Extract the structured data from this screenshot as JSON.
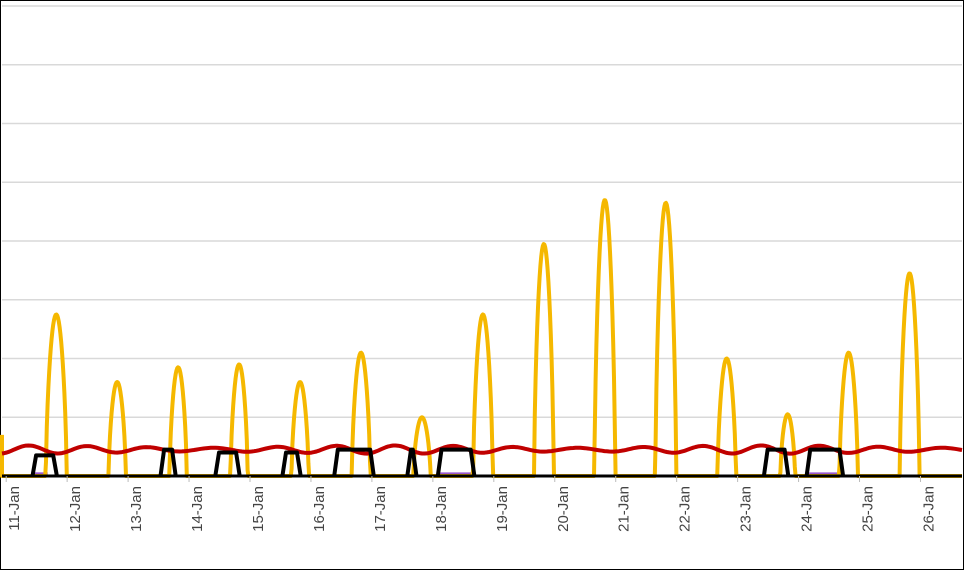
{
  "chart_data": {
    "type": "line",
    "title": "",
    "xlabel": "",
    "ylabel": "",
    "ylim": [
      0,
      8
    ],
    "grid": true,
    "categories": [
      "11-Jan",
      "12-Jan",
      "13-Jan",
      "14-Jan",
      "15-Jan",
      "16-Jan",
      "17-Jan",
      "18-Jan",
      "19-Jan",
      "20-Jan",
      "21-Jan",
      "22-Jan",
      "23-Jan",
      "24-Jan",
      "25-Jan",
      "26-Jan"
    ],
    "series": [
      {
        "color": "#f5b800",
        "peaks": [
          {
            "day": 0.69,
            "peak": 2.75,
            "width": 0.34
          },
          {
            "day": 1.69,
            "peak": 1.6,
            "width": 0.28
          },
          {
            "day": 2.69,
            "peak": 1.85,
            "width": 0.28
          },
          {
            "day": 3.69,
            "peak": 1.9,
            "width": 0.28
          },
          {
            "day": 4.69,
            "peak": 1.6,
            "width": 0.28
          },
          {
            "day": 5.69,
            "peak": 2.1,
            "width": 0.3
          },
          {
            "day": 6.69,
            "peak": 1.0,
            "width": 0.28
          },
          {
            "day": 7.69,
            "peak": 2.75,
            "width": 0.32
          },
          {
            "day": 8.69,
            "peak": 3.95,
            "width": 0.32
          },
          {
            "day": 9.69,
            "peak": 4.7,
            "width": 0.34
          },
          {
            "day": 10.69,
            "peak": 4.65,
            "width": 0.34
          },
          {
            "day": 11.69,
            "peak": 2.0,
            "width": 0.3
          },
          {
            "day": 12.69,
            "peak": 1.05,
            "width": 0.24
          },
          {
            "day": 13.69,
            "peak": 2.1,
            "width": 0.3
          },
          {
            "day": 14.69,
            "peak": 3.45,
            "width": 0.32
          }
        ]
      },
      {
        "color": "#c00000",
        "baseline": 0.45,
        "amplitude": 0.05
      },
      {
        "color": "#000000",
        "pulses": [
          {
            "start": 0.3,
            "end": 0.7,
            "value": 0.35
          },
          {
            "start": 2.4,
            "end": 2.65,
            "value": 0.45
          },
          {
            "start": 3.3,
            "end": 3.7,
            "value": 0.4
          },
          {
            "start": 4.4,
            "end": 4.7,
            "value": 0.4
          },
          {
            "start": 5.25,
            "end": 5.9,
            "value": 0.45
          },
          {
            "start": 6.45,
            "end": 6.6,
            "value": 0.45
          },
          {
            "start": 6.95,
            "end": 7.55,
            "value": 0.45
          },
          {
            "start": 12.3,
            "end": 12.7,
            "value": 0.45
          },
          {
            "start": 13.0,
            "end": 13.6,
            "value": 0.45
          }
        ]
      },
      {
        "color": "#9b59d0",
        "segments": [
          [
            0.3,
            0.55
          ],
          [
            6.95,
            7.55
          ],
          [
            13.0,
            13.55
          ]
        ],
        "value": 0.02
      }
    ]
  }
}
